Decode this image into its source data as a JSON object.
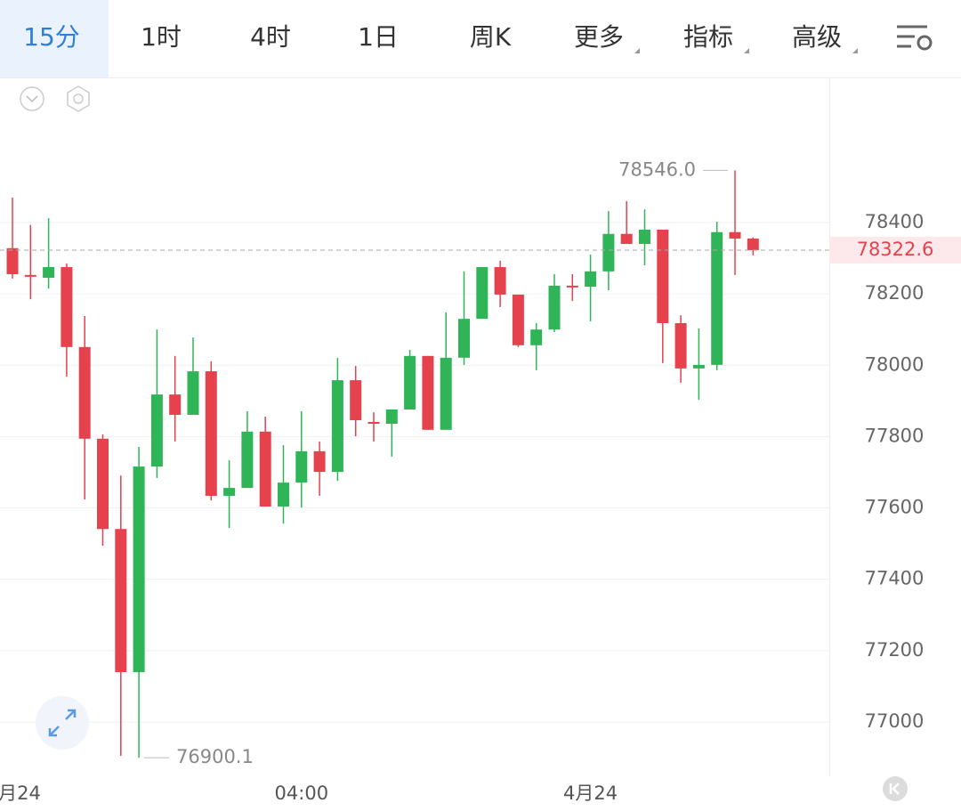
{
  "toolbar": {
    "tabs": [
      "15分",
      "1时",
      "4时",
      "1日",
      "周K",
      "更多",
      "指标",
      "高级"
    ],
    "active": 0
  },
  "chart_data": {
    "type": "candlestick",
    "categories": [
      "月24",
      null,
      null,
      null,
      null,
      null,
      null,
      null,
      null,
      null,
      null,
      null,
      null,
      null,
      null,
      null,
      "04:00",
      null,
      null,
      null,
      null,
      null,
      null,
      null,
      null,
      null,
      null,
      null,
      null,
      null,
      null,
      null,
      "4月24",
      null,
      null,
      null,
      null,
      null,
      null,
      null,
      null,
      null
    ],
    "open": [
      78328,
      78253,
      78245,
      78275,
      78051,
      77794,
      77541,
      77140,
      77716,
      77918,
      77861,
      77983,
      77634,
      77656,
      77814,
      77604,
      77671,
      77759,
      77701,
      77958,
      77841,
      77836,
      77876,
      78026,
      77819,
      78021,
      78130,
      78275,
      78198,
      78056,
      78100,
      78223,
      78220,
      78263,
      78368,
      78340,
      78380,
      78118,
      77991,
      78001,
      78373,
      78355
    ],
    "high": [
      78470,
      78393,
      78412,
      78285,
      78138,
      77806,
      77691,
      77771,
      78100,
      78026,
      78078,
      78011,
      77734,
      77871,
      77856,
      77776,
      77871,
      77786,
      78021,
      77998,
      77868,
      77876,
      78043,
      78026,
      78148,
      78263,
      78275,
      78293,
      78198,
      78118,
      78255,
      78255,
      78310,
      78432,
      78460,
      78437,
      78380,
      78140,
      78103,
      78402,
      78546,
      78358
    ],
    "low": [
      78243,
      78185,
      78215,
      77968,
      77624,
      77494,
      76905,
      76900.1,
      77684,
      77786,
      77861,
      77621,
      77544,
      77656,
      77604,
      77556,
      77601,
      77634,
      77676,
      77801,
      77786,
      77744,
      77876,
      77819,
      77819,
      78001,
      78130,
      78163,
      78051,
      77986,
      78093,
      78180,
      78123,
      78210,
      78340,
      78280,
      78006,
      77951,
      77903,
      77986,
      78253,
      78308
    ],
    "close": [
      78255,
      78248,
      78275,
      78051,
      77794,
      77541,
      77140,
      77716,
      77918,
      77861,
      77983,
      77634,
      77656,
      77814,
      77604,
      77671,
      77759,
      77701,
      77958,
      77846,
      77836,
      77876,
      78026,
      77819,
      78021,
      78130,
      78275,
      78198,
      78056,
      78100,
      78223,
      78220,
      78263,
      78368,
      78340,
      78380,
      78118,
      77991,
      78001,
      78373,
      78355,
      78322.6
    ],
    "up_color": "#2fb557",
    "down_color": "#e5424d",
    "ylim": [
      76848,
      78804
    ],
    "yticks": [
      77000,
      77200,
      77400,
      77600,
      77800,
      78000,
      78200,
      78400
    ],
    "grid": true,
    "annotations": [
      {
        "value": 78546,
        "label": "78546.0"
      },
      {
        "value": 76900.1,
        "label": "76900.1"
      }
    ]
  }
}
